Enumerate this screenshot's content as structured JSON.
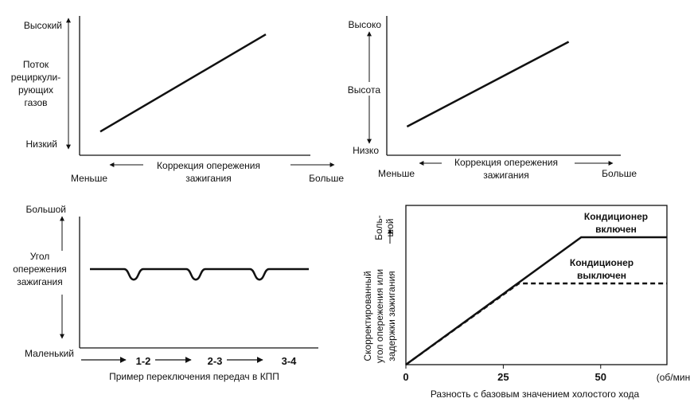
{
  "chart_data": [
    {
      "type": "line",
      "ylabel": "Поток рециркули- рующих газов",
      "ylabel_lines": [
        "Поток",
        "рециркули-",
        "рующих",
        "газов"
      ],
      "y_high_label": "Высокий",
      "y_low_label": "Низкий",
      "xlabel": "Коррекция опережения зажигания",
      "xlabel_lines": [
        "Коррекция опережения",
        "зажигания"
      ],
      "x_left_label": "Меньше",
      "x_right_label": "Больше",
      "series": [
        {
          "x": [
            0.1,
            0.9
          ],
          "y": [
            0.18,
            0.92
          ]
        }
      ],
      "xlim": [
        0,
        1
      ],
      "ylim": [
        0,
        1
      ]
    },
    {
      "type": "line",
      "y_high_label": "Высоко",
      "y_mid_label": "Высота",
      "y_low_label": "Низко",
      "xlabel": "Коррекция опережения зажигания",
      "xlabel_lines": [
        "Коррекция опережения",
        "зажигания"
      ],
      "x_left_label": "Меньше",
      "x_right_label": "Больше",
      "series": [
        {
          "x": [
            0.1,
            0.9
          ],
          "y": [
            0.24,
            0.95
          ]
        }
      ],
      "xlim": [
        0,
        1
      ],
      "ylim": [
        0,
        1
      ]
    },
    {
      "type": "line",
      "ylabel": "Угол опережения зажигания",
      "ylabel_lines": [
        "Угол",
        "опережения",
        "зажигания"
      ],
      "y_high_label": "Большой",
      "y_low_label": "Маленький",
      "xlabel": "Пример переключения передач в КПП",
      "categories": [
        "1-2",
        "2-3",
        "3-4"
      ],
      "series": [
        {
          "level": 0.6,
          "dip_depth": 0.08,
          "dips_at": [
            "1-2",
            "2-3",
            "3-4"
          ]
        }
      ]
    },
    {
      "type": "line",
      "ylabel": "Скорректированный угол опережения или задержки зажигания",
      "ylabel_lines": [
        "Скорректированный",
        "угол опережения или",
        "задержки зажигания"
      ],
      "y_high_label": "Боль-шой",
      "y_high_lines": [
        "Боль-",
        "шой"
      ],
      "xlabel": "Разность с базовым значением холостого хода",
      "x_unit": "(об/мин)",
      "x_ticks": [
        0,
        25,
        50
      ],
      "xlim": [
        0,
        67
      ],
      "ylim": [
        0,
        1
      ],
      "series": [
        {
          "name": "Кондиционер включен",
          "name_lines": [
            "Кондиционер",
            "включен"
          ],
          "style": "solid",
          "x": [
            0,
            45,
            67
          ],
          "y": [
            0,
            0.8,
            0.8
          ]
        },
        {
          "name": "Кондиционер выключен",
          "name_lines": [
            "Кондиционер",
            "выключен"
          ],
          "style": "dashed",
          "x": [
            0,
            29,
            67
          ],
          "y": [
            0,
            0.51,
            0.51
          ]
        }
      ]
    }
  ]
}
